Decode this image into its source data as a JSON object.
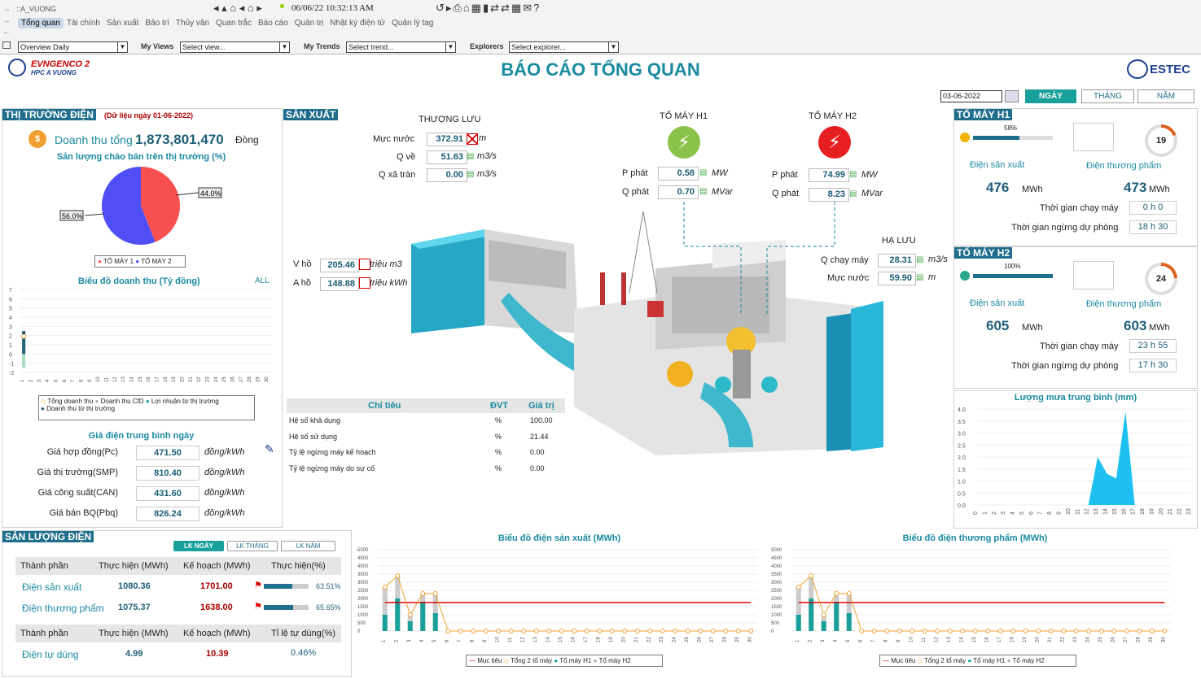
{
  "topbar": {
    "station": "::A_VUONG",
    "datetime": "06/06/22 10:32:13 AM",
    "tabs": [
      "Tổng quan",
      "Tài chính",
      "Sản xuất",
      "Bảo trì",
      "Thủy văn",
      "Quan trắc",
      "Báo cáo",
      "Quản trị",
      "Nhật ký điện tử",
      "Quản lý tag"
    ],
    "overview": "Overview Daily",
    "myviews_label": "My Views",
    "myviews": "Select view...",
    "mytrends_label": "My Trends",
    "mytrends": "Select trend...",
    "explorers_label": "Explorers",
    "explorers": "Select explorer..."
  },
  "header": {
    "logo_main": "EVNGENCO 2",
    "logo_sub": "HPC A VUONG",
    "title": "BÁO CÁO TỔNG QUAN",
    "estec": "ESTEC",
    "date": "03-06-2022",
    "btn_day": "NGÀY",
    "btn_month": "THÁNG",
    "btn_year": "NĂM"
  },
  "market": {
    "title": "THỊ TRƯỜNG ĐIỆN",
    "note": "(Dữ liệu ngày 01-06-2022)",
    "revenue_label": "Doanh thu tổng",
    "revenue": "1,873,801,470",
    "revenue_unit": "Đồng",
    "pie_title": "Sản lượng chào bán trên thị trường (%)",
    "pie_a": "44.0%",
    "pie_b": "56.0%",
    "legend_a": "TỔ MÁY 1",
    "legend_b": "TỔ MÁY 2",
    "rev_chart_title": "Biểu đồ doanh thu (Tỷ đồng)",
    "all": "ALL",
    "rev_legend": [
      "Tổng doanh thu",
      "Doanh thu CfD",
      "Lợi nhuận từ thị trường",
      "Doanh thu từ thị trường"
    ],
    "price_title": "Giá điện trung bình ngày",
    "prices": [
      {
        "label": "Giá hợp đồng(Pc)",
        "value": "471.50",
        "unit": "đồng/kWh"
      },
      {
        "label": "Giá thị trường(SMP)",
        "value": "810.40",
        "unit": "đồng/kWh"
      },
      {
        "label": "Giá công suất(CAN)",
        "value": "431.60",
        "unit": "đồng/kWh"
      },
      {
        "label": "Giá bán BQ(Pbq)",
        "value": "826.24",
        "unit": "đồng/kWh"
      }
    ]
  },
  "production": {
    "title": "SẢN XUẤT",
    "upstream": "THƯỢNG LƯU",
    "muc_nuoc_label": "Mực nước",
    "muc_nuoc": "372.91",
    "muc_unit": "m",
    "qve_label": "Q về",
    "qve": "51.63",
    "qve_unit": "m3/s",
    "qxa_label": "Q xả tràn",
    "qxa": "0.00",
    "qxa_unit": "m3/s",
    "vho_label": "V hồ",
    "vho": "205.46",
    "vho_unit": "triệu m3",
    "aho_label": "A hồ",
    "aho": "148.88",
    "aho_unit": "triệu kWh",
    "h1_title": "TỔ MÁY H1",
    "h2_title": "TỔ MÁY H2",
    "p_label": "P phát",
    "q_label": "Q phát",
    "h1_p": "0.58",
    "h1_q": "0.70",
    "h2_p": "74.99",
    "h2_q": "8.23",
    "p_unit": "MW",
    "q_unit": "MVar",
    "downstream": "HẠ LƯU",
    "qchay_label": "Q chạy máy",
    "qchay": "28.31",
    "qchay_unit": "m3/s",
    "mn_label": "Mực nước",
    "mn": "59.90",
    "mn_unit": "m",
    "table_headers": [
      "Chỉ tiêu",
      "ĐVT",
      "Giá trị"
    ],
    "table": [
      [
        "Hệ số khả dụng",
        "%",
        "100.00"
      ],
      [
        "Hệ số sử dụng",
        "%",
        "21.44"
      ],
      [
        "Tỷ lệ ngừng máy kế hoạch",
        "%",
        "0.00"
      ],
      [
        "Tỷ lệ ngừng máy do sự cố",
        "%",
        "0.00"
      ]
    ]
  },
  "units": [
    {
      "title": "TỔ MÁY H1",
      "pct": "58%",
      "pct_value": 0.58,
      "gauge": "19",
      "gauge_value": 0.19,
      "prod_label": "Điện sản xuất",
      "prod": "476",
      "prod_unit": "MWh",
      "comm_label": "Điện thương phẩm",
      "comm": "473",
      "comm_unit": "MWh",
      "run_label": "Thời gian chạy máy",
      "run": "0 h 0",
      "stand_label": "Thời gian ngừng dự phòng",
      "stand": "18 h 30"
    },
    {
      "title": "TỔ MÁY H2",
      "pct": "100%",
      "pct_value": 1.0,
      "gauge": "24",
      "gauge_value": 0.24,
      "prod_label": "Điện sản xuất",
      "prod": "605",
      "prod_unit": "MWh",
      "comm_label": "Điện thương phẩm",
      "comm": "603",
      "comm_unit": "MWh",
      "run_label": "Thời gian chạy máy",
      "run": "23 h 55",
      "stand_label": "Thời gian ngừng dự phòng",
      "stand": "17 h 30"
    }
  ],
  "rain": {
    "title": "Lượng mưa trung bình (mm)"
  },
  "output": {
    "title": "SẢN LƯỢNG ĐIỆN",
    "btns": [
      "LK NGÀY",
      "LK THÁNG",
      "LK NĂM"
    ],
    "headers": [
      "Thành phần",
      "Thực hiện (MWh)",
      "Kế hoạch (MWh)",
      "Thực hiện(%)"
    ],
    "rows": [
      {
        "name": "Điện sản xuất",
        "actual": "1080.36",
        "plan": "1701.00",
        "pct": "63.51%",
        "pct_value": 0.6351
      },
      {
        "name": "Điện thương phẩm",
        "actual": "1075.37",
        "plan": "1638.00",
        "pct": "65.65%",
        "pct_value": 0.6565
      }
    ],
    "headers2": [
      "Thành phần",
      "Thực hiện (MWh)",
      "Kế hoạch (MWh)",
      "Tỉ lệ tự dùng(%)"
    ],
    "row2": {
      "name": "Điện tự dùng",
      "actual": "4.99",
      "plan": "10.39",
      "pct": "0.46%"
    }
  },
  "prodchart": {
    "title": "Biểu đồ điện sản xuất (MWh)",
    "legend": [
      "Mục tiêu",
      "Tổng 2 tổ máy",
      "Tổ máy H1",
      "Tổ máy H2"
    ]
  },
  "commchart": {
    "title": "Biểu đồ điện thương phẩm (MWh)",
    "legend": [
      "Mục tiêu",
      "Tổng 2 tổ máy",
      "Tổ máy H1",
      "Tổ máy H2"
    ]
  },
  "chart_data": [
    {
      "type": "pie",
      "title": "Sản lượng chào bán trên thị trường (%)",
      "labels": [
        "TỔ MÁY 1",
        "TỔ MÁY 2"
      ],
      "values": [
        44.0,
        56.0
      ],
      "colors": [
        "#f85050",
        "#4f4ff5"
      ]
    },
    {
      "type": "bar",
      "title": "Biểu đồ doanh thu (Tỷ đồng)",
      "categories": [
        "1",
        "2",
        "3",
        "4",
        "5",
        "6",
        "7",
        "8",
        "9",
        "10",
        "11",
        "12",
        "13",
        "14",
        "15",
        "16",
        "17",
        "18",
        "19",
        "20",
        "21",
        "22",
        "23",
        "24",
        "25",
        "26",
        "27",
        "28",
        "29",
        "30"
      ],
      "ylim": [
        -2,
        7
      ],
      "series": [
        {
          "name": "Doanh thu CfD",
          "values": [
            2.5,
            0,
            0,
            0,
            0,
            0,
            0,
            0,
            0,
            0,
            0,
            0,
            0,
            0,
            0,
            0,
            0,
            0,
            0,
            0,
            0,
            0,
            0,
            0,
            0,
            0,
            0,
            0,
            0,
            0
          ]
        },
        {
          "name": "Lợi nhuận từ thị trường",
          "values": [
            -1.5,
            0,
            0,
            0,
            0,
            0,
            0,
            0,
            0,
            0,
            0,
            0,
            0,
            0,
            0,
            0,
            0,
            0,
            0,
            0,
            0,
            0,
            0,
            0,
            0,
            0,
            0,
            0,
            0,
            0
          ]
        },
        {
          "name": "Tổng doanh thu",
          "values": [
            1.9,
            0,
            0,
            0,
            0,
            0,
            0,
            0,
            0,
            0,
            0,
            0,
            0,
            0,
            0,
            0,
            0,
            0,
            0,
            0,
            0,
            0,
            0,
            0,
            0,
            0,
            0,
            0,
            0,
            0
          ]
        }
      ]
    },
    {
      "type": "area",
      "title": "Lượng mưa trung bình (mm)",
      "categories": [
        "0",
        "1",
        "2",
        "3",
        "4",
        "5",
        "6",
        "7",
        "8",
        "9",
        "10",
        "11",
        "12",
        "13",
        "14",
        "15",
        "16",
        "17",
        "18",
        "19",
        "20",
        "21",
        "22",
        "23"
      ],
      "values": [
        0,
        0,
        0,
        0,
        0,
        0,
        0,
        0,
        0,
        0,
        0,
        0,
        0,
        2.0,
        1.3,
        1.1,
        3.9,
        0,
        0,
        0,
        0,
        0,
        0,
        0
      ],
      "ylim": [
        0,
        4
      ]
    },
    {
      "type": "bar",
      "title": "Biểu đồ điện sản xuất (MWh)",
      "categories": [
        "1",
        "2",
        "3",
        "4",
        "5",
        "6",
        "7",
        "8",
        "9",
        "10",
        "11",
        "12",
        "13",
        "14",
        "15",
        "16",
        "17",
        "18",
        "19",
        "20",
        "21",
        "22",
        "23",
        "24",
        "25",
        "26",
        "27",
        "28",
        "29",
        "30"
      ],
      "ylim": [
        0,
        5000
      ],
      "target": 1750,
      "series": [
        {
          "name": "Tổ máy H1",
          "values": [
            1000,
            2000,
            600,
            1800,
            1100,
            0,
            0,
            0,
            0,
            0,
            0,
            0,
            0,
            0,
            0,
            0,
            0,
            0,
            0,
            0,
            0,
            0,
            0,
            0,
            0,
            0,
            0,
            0,
            0,
            0
          ]
        },
        {
          "name": "Tổ máy H2",
          "values": [
            1700,
            1400,
            400,
            500,
            1200,
            0,
            0,
            0,
            0,
            0,
            0,
            0,
            0,
            0,
            0,
            0,
            0,
            0,
            0,
            0,
            0,
            0,
            0,
            0,
            0,
            0,
            0,
            0,
            0,
            0
          ]
        },
        {
          "name": "Tổng 2 tổ máy",
          "values": [
            2700,
            3400,
            1000,
            2300,
            2300,
            0,
            0,
            0,
            0,
            0,
            0,
            0,
            0,
            0,
            0,
            0,
            0,
            0,
            0,
            0,
            0,
            0,
            0,
            0,
            0,
            0,
            0,
            0,
            0,
            0
          ]
        }
      ]
    },
    {
      "type": "bar",
      "title": "Biểu đồ điện thương phẩm (MWh)",
      "categories": [
        "1",
        "2",
        "3",
        "4",
        "5",
        "6",
        "7",
        "8",
        "9",
        "10",
        "11",
        "12",
        "13",
        "14",
        "15",
        "16",
        "17",
        "18",
        "19",
        "20",
        "21",
        "22",
        "23",
        "24",
        "25",
        "26",
        "27",
        "28",
        "29",
        "30"
      ],
      "ylim": [
        0,
        5000
      ],
      "target": 1750,
      "series": [
        {
          "name": "Tổ máy H1",
          "values": [
            1000,
            2000,
            600,
            1800,
            1100,
            0,
            0,
            0,
            0,
            0,
            0,
            0,
            0,
            0,
            0,
            0,
            0,
            0,
            0,
            0,
            0,
            0,
            0,
            0,
            0,
            0,
            0,
            0,
            0,
            0
          ]
        },
        {
          "name": "Tổ máy H2",
          "values": [
            1700,
            1400,
            400,
            500,
            1200,
            0,
            0,
            0,
            0,
            0,
            0,
            0,
            0,
            0,
            0,
            0,
            0,
            0,
            0,
            0,
            0,
            0,
            0,
            0,
            0,
            0,
            0,
            0,
            0,
            0
          ]
        },
        {
          "name": "Tổng 2 tổ máy",
          "values": [
            2700,
            3400,
            1000,
            2300,
            2300,
            0,
            0,
            0,
            0,
            0,
            0,
            0,
            0,
            0,
            0,
            0,
            0,
            0,
            0,
            0,
            0,
            0,
            0,
            0,
            0,
            0,
            0,
            0,
            0,
            0
          ]
        }
      ]
    }
  ]
}
